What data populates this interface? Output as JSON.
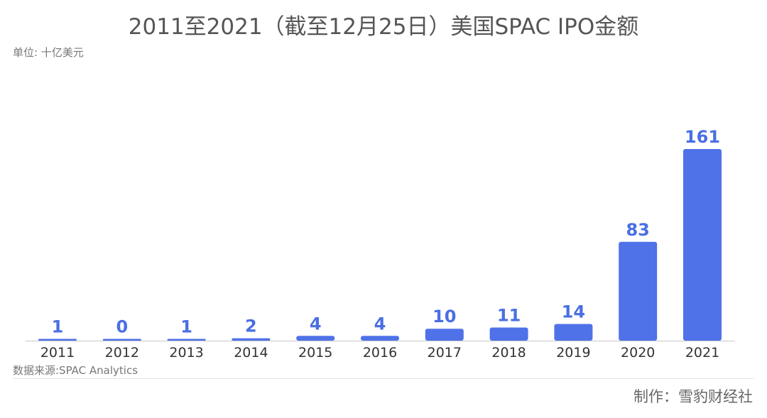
{
  "title": "2011至2021（截至12月25日）美国SPAC IPO金额",
  "unit_label": "单位: 十亿美元",
  "source": "数据来源:SPAC Analytics",
  "credit": "制作：雪豹财经社",
  "colors": {
    "bar": "#4f72e8",
    "value_label": "#4a6fe3",
    "axis": "#c8c8c8",
    "tick_label": "#333333"
  },
  "chart_data": {
    "type": "bar",
    "title": "2011至2021（截至12月25日）美国SPAC IPO金额",
    "ylabel": "单位: 十亿美元",
    "categories": [
      "2011",
      "2012",
      "2013",
      "2014",
      "2015",
      "2016",
      "2017",
      "2018",
      "2019",
      "2020",
      "2021"
    ],
    "values": [
      1,
      0,
      1,
      2,
      4,
      4,
      10,
      11,
      14,
      83,
      161
    ],
    "ylim": [
      0,
      161
    ],
    "grid": false,
    "legend": "none"
  }
}
